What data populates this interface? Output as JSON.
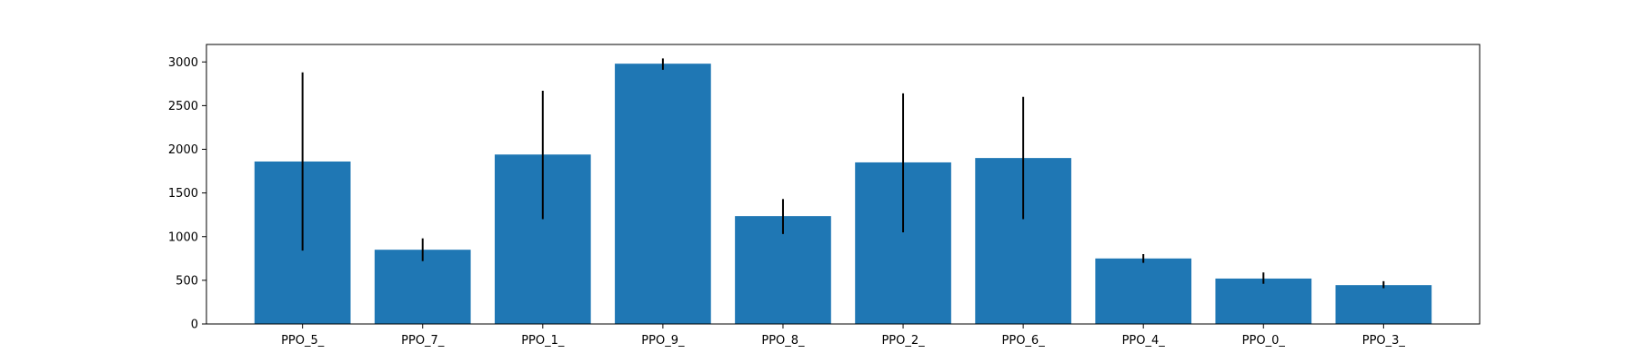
{
  "chart_data": {
    "type": "bar",
    "title": "",
    "xlabel": "",
    "ylabel": "",
    "categories": [
      "PPO_5_",
      "PPO_7_",
      "PPO_1_",
      "PPO_9_",
      "PPO_8_",
      "PPO_2_",
      "PPO_6_",
      "PPO_4_",
      "PPO_0_",
      "PPO_3_"
    ],
    "values": [
      1860,
      850,
      1940,
      2980,
      1235,
      1850,
      1900,
      750,
      520,
      445
    ],
    "error_bars": [
      [
        840,
        2880
      ],
      [
        720,
        980
      ],
      [
        1200,
        2670
      ],
      [
        2910,
        3040
      ],
      [
        1030,
        1430
      ],
      [
        1050,
        2640
      ],
      [
        1200,
        2600
      ],
      [
        700,
        800
      ],
      [
        460,
        590
      ],
      [
        410,
        490
      ]
    ],
    "ylim": [
      0,
      3200
    ],
    "yticks": [
      0,
      500,
      1000,
      1500,
      2000,
      2500,
      3000
    ],
    "ytick_labels": [
      "0",
      "500",
      "1000",
      "1500",
      "2000",
      "2500",
      "3000"
    ],
    "bar_color": "#1f77b4",
    "error_color": "#000000",
    "grid": false,
    "legend": "none"
  }
}
